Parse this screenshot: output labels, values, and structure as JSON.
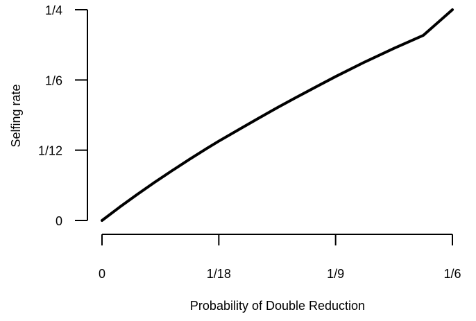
{
  "chart_data": {
    "type": "line",
    "title": "",
    "xlabel": "Probability of Double Reduction",
    "ylabel": "Selfing rate",
    "xlim": [
      0,
      0.16666667
    ],
    "ylim": [
      0,
      0.25
    ],
    "x_ticks": [
      {
        "value": 0,
        "label": "0"
      },
      {
        "value": 0.05555556,
        "label": "1/18"
      },
      {
        "value": 0.11111111,
        "label": "1/9"
      },
      {
        "value": 0.16666667,
        "label": "1/6"
      }
    ],
    "y_ticks": [
      {
        "value": 0,
        "label": "0"
      },
      {
        "value": 0.08333333,
        "label": "1/12"
      },
      {
        "value": 0.16666667,
        "label": "1/6"
      },
      {
        "value": 0.25,
        "label": "1/4"
      }
    ],
    "grid": false,
    "legend": "none",
    "series": [
      {
        "color": "#000000",
        "x": [
          0,
          0.00833,
          0.01667,
          0.025,
          0.03333,
          0.04167,
          0.05,
          0.05556,
          0.06667,
          0.075,
          0.08333,
          0.09167,
          0.1,
          0.11111,
          0.125,
          0.13889,
          0.15278,
          0.16667
        ],
        "values": [
          0,
          0.0157,
          0.0307,
          0.0452,
          0.0591,
          0.0726,
          0.0857,
          0.0941,
          0.1101,
          0.122,
          0.1337,
          0.145,
          0.1561,
          0.1707,
          0.188,
          0.2042,
          0.2195,
          0.25
        ]
      }
    ]
  }
}
